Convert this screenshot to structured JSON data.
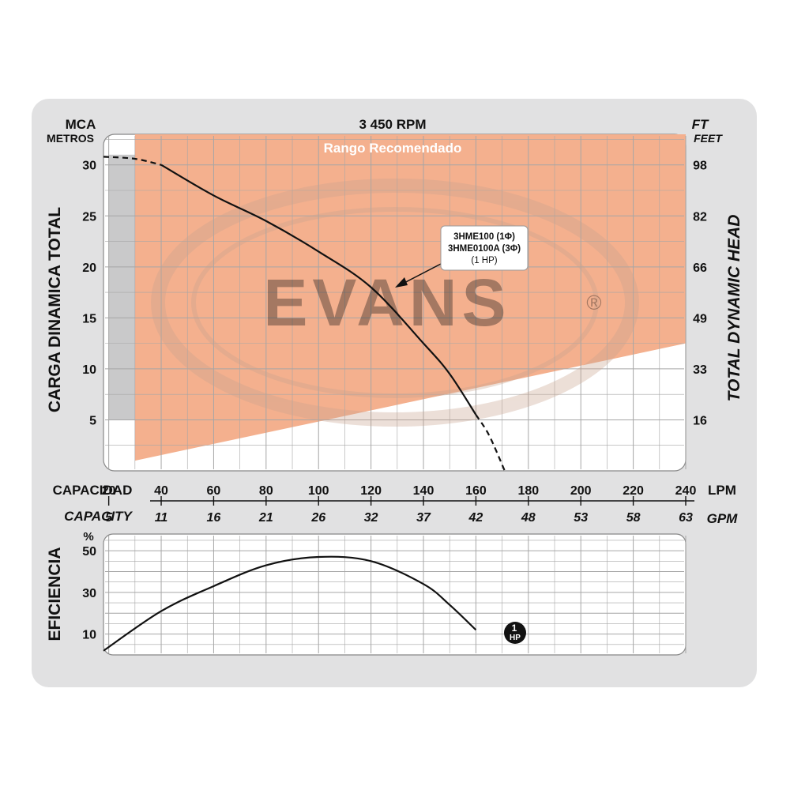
{
  "title": "3 450 RPM",
  "recommended_range_label": "Rango Recomendado",
  "left_unit_1": "MCA",
  "left_unit_2": "METROS",
  "right_unit_1": "FT",
  "right_unit_2": "FEET",
  "left_axis_title": "CARGA  DINAMICA  TOTAL",
  "right_axis_title": "TOTAL  DYNAMIC  HEAD",
  "capacity_label_es": "CAPACIDAD",
  "capacity_label_en": "CAPACITY",
  "lpm_unit": "LPM",
  "gpm_unit": "GPM",
  "efficiency_axis_title": "EFICIENCIA",
  "efficiency_unit": "%",
  "watermark": "EVANS",
  "watermark_registered": "®",
  "model_label": [
    "3HME100 (1Φ)",
    "3HME0100A (3Φ)",
    "(1 HP)"
  ],
  "hp_marker": [
    "1",
    "HP"
  ],
  "colors": {
    "panel": "#e1e1e2",
    "grid_bg": "#ffffff",
    "grid_line": "#a6a6a6",
    "recommended": "#f4b08e",
    "gray_band": "#c9c9ca",
    "curve": "#111111"
  },
  "chart_data": [
    {
      "type": "line",
      "name": "head-curve",
      "x_unit": "LPM",
      "y_unit": "MCA",
      "xlim": [
        18,
        240
      ],
      "ylim": [
        0,
        33
      ],
      "x_ticks": [
        20,
        40,
        60,
        80,
        100,
        120,
        140,
        160,
        180,
        200,
        220,
        240
      ],
      "gpm_ticks": [
        "5",
        "11",
        "16",
        "21",
        "26",
        "32",
        "37",
        "42",
        "48",
        "53",
        "58",
        "63"
      ],
      "y_ticks": [
        5,
        10,
        15,
        20,
        25,
        30
      ],
      "ft_ticks": [
        "16",
        "33",
        "49",
        "66",
        "82",
        "98"
      ],
      "recommended_range": {
        "x_start": 30,
        "x_end": 240,
        "y_top": 33,
        "lower_boundary": [
          [
            30,
            1
          ],
          [
            240,
            12.5
          ]
        ]
      },
      "series": [
        {
          "name": "3HME100",
          "dashed_before": 40,
          "dashed_after": 160,
          "x": [
            18,
            30,
            40,
            60,
            80,
            100,
            120,
            140,
            150,
            160,
            165,
            171
          ],
          "y": [
            30.8,
            30.6,
            30.0,
            27.0,
            24.5,
            21.5,
            18.0,
            12.5,
            9.5,
            5.5,
            3.5,
            0
          ]
        }
      ],
      "grid": true
    },
    {
      "type": "line",
      "name": "efficiency-curve",
      "x_unit": "LPM",
      "y_unit": "%",
      "xlim": [
        18,
        240
      ],
      "ylim": [
        0,
        58
      ],
      "y_ticks": [
        10,
        30,
        50
      ],
      "series": [
        {
          "name": "1 HP",
          "x": [
            18,
            40,
            60,
            80,
            100,
            120,
            140,
            150,
            160
          ],
          "y": [
            2,
            21,
            33,
            43,
            47,
            45,
            34,
            24,
            12
          ]
        }
      ],
      "grid": true
    }
  ]
}
